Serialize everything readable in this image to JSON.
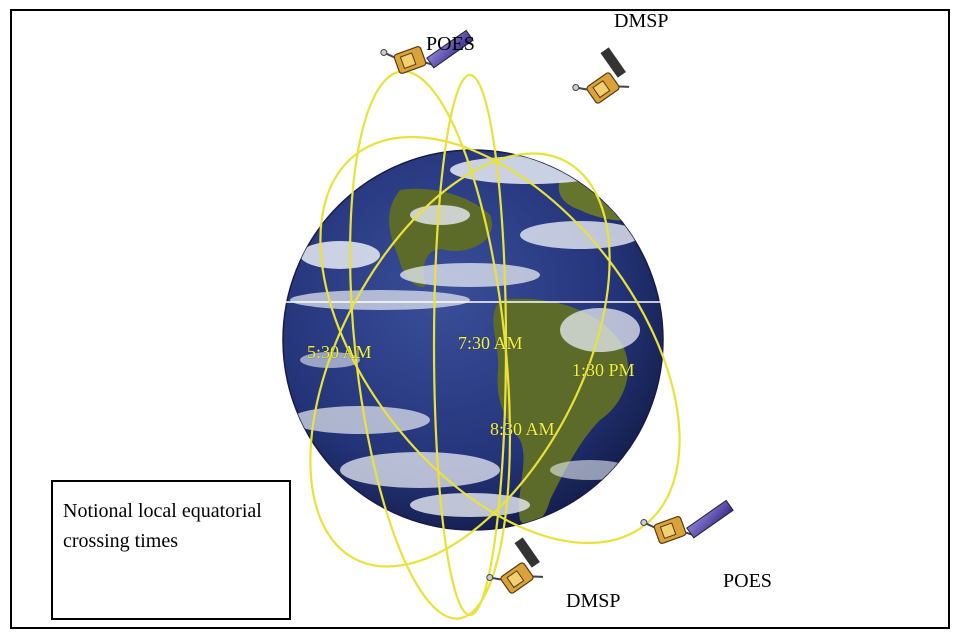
{
  "satellites": {
    "poes_top": "POES",
    "dmsp_top": "DMSP",
    "dmsp_bottom": "DMSP",
    "poes_bottom": "POES"
  },
  "crossing_times": {
    "t1": "5:30 AM",
    "t2": "7:30 AM",
    "t3": "1:30 PM",
    "t4": "8:30 AM"
  },
  "note": "Notional local equatorial crossing times",
  "colors": {
    "orbit": "#e8e23a",
    "ocean": "#24347a",
    "cloud": "#e8ecf4",
    "land": "#5d6b2a",
    "time_label": "#f2f23a"
  },
  "icons": [
    "satellite-icon"
  ]
}
